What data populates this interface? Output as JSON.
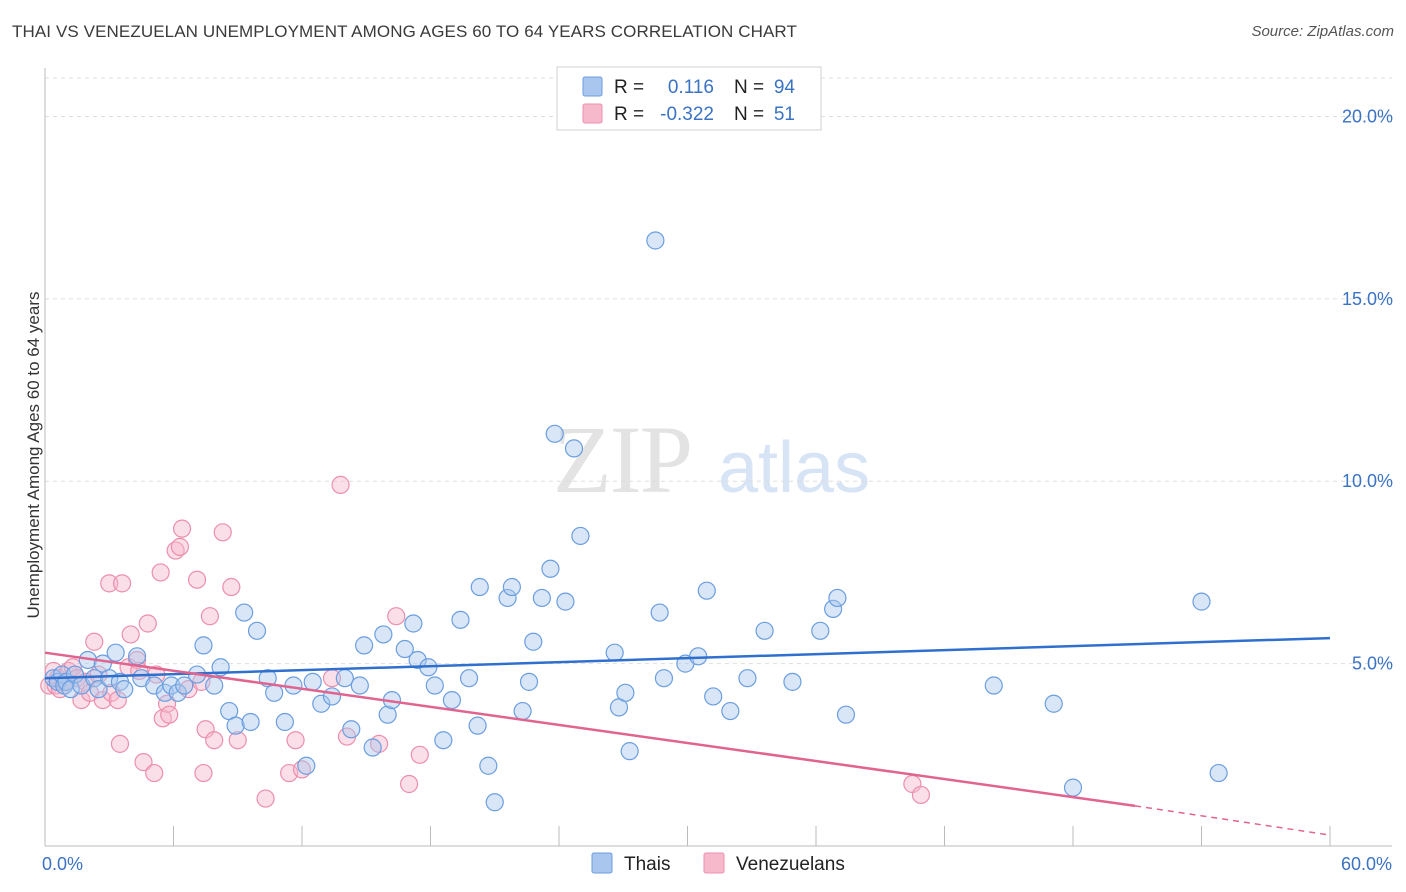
{
  "header": {
    "title": "THAI VS VENEZUELAN UNEMPLOYMENT AMONG AGES 60 TO 64 YEARS CORRELATION CHART",
    "source": "Source: ZipAtlas.com"
  },
  "watermark": {
    "zip": "ZIP",
    "atlas": "atlas"
  },
  "legend": {
    "rows": [
      {
        "r_label": "R =",
        "r_value": "0.116",
        "n_label": "N =",
        "n_value": "94"
      },
      {
        "r_label": "R =",
        "r_value": "-0.322",
        "n_label": "N =",
        "n_value": "51"
      }
    ]
  },
  "bottom_legend": {
    "thais": "Thais",
    "venezuelans": "Venezuelans"
  },
  "colors": {
    "thais_fill": "#a9c7ee",
    "thais_stroke": "#6b9ee0",
    "thais_line": "#2f6fce",
    "ven_fill": "#f6b8cb",
    "ven_stroke": "#ec8fac",
    "ven_line": "#e0648f",
    "tick": "#3a72c4",
    "grid": "#dddddd"
  },
  "chart_data": {
    "type": "scatter",
    "title": "THAI VS VENEZUELAN UNEMPLOYMENT AMONG AGES 60 TO 64 YEARS CORRELATION CHART",
    "xlabel": "",
    "ylabel": "Unemployment Among Ages 60 to 64 years",
    "xlim": [
      0,
      60
    ],
    "ylim": [
      0,
      21
    ],
    "x_tick_labels": [
      "0.0%",
      "60.0%"
    ],
    "y_ticks": [
      5,
      10,
      15,
      20
    ],
    "y_tick_labels": [
      "5.0%",
      "10.0%",
      "15.0%",
      "20.0%"
    ],
    "grid": true,
    "legend_position": "top-center",
    "series": [
      {
        "name": "Thais",
        "R": 0.116,
        "N": 94,
        "trend": {
          "x": [
            0,
            60
          ],
          "y": [
            4.6,
            5.7
          ]
        },
        "points": [
          [
            0.4,
            4.6
          ],
          [
            0.6,
            4.5
          ],
          [
            0.8,
            4.7
          ],
          [
            0.9,
            4.4
          ],
          [
            1.0,
            4.5
          ],
          [
            1.2,
            4.3
          ],
          [
            1.4,
            4.7
          ],
          [
            1.7,
            4.4
          ],
          [
            2.0,
            5.1
          ],
          [
            2.3,
            4.6
          ],
          [
            2.5,
            4.3
          ],
          [
            2.7,
            5.0
          ],
          [
            3.0,
            4.6
          ],
          [
            3.3,
            5.3
          ],
          [
            3.5,
            4.5
          ],
          [
            3.7,
            4.3
          ],
          [
            4.3,
            5.2
          ],
          [
            4.5,
            4.6
          ],
          [
            5.1,
            4.4
          ],
          [
            5.6,
            4.2
          ],
          [
            5.9,
            4.4
          ],
          [
            6.2,
            4.2
          ],
          [
            6.5,
            4.4
          ],
          [
            7.1,
            4.7
          ],
          [
            7.4,
            5.5
          ],
          [
            7.9,
            4.4
          ],
          [
            8.2,
            4.9
          ],
          [
            8.6,
            3.7
          ],
          [
            8.9,
            3.3
          ],
          [
            9.3,
            6.4
          ],
          [
            9.6,
            3.4
          ],
          [
            9.9,
            5.9
          ],
          [
            10.4,
            4.6
          ],
          [
            10.7,
            4.2
          ],
          [
            11.2,
            3.4
          ],
          [
            11.6,
            4.4
          ],
          [
            12.2,
            2.2
          ],
          [
            12.5,
            4.5
          ],
          [
            12.9,
            3.9
          ],
          [
            13.4,
            4.1
          ],
          [
            14.0,
            4.6
          ],
          [
            14.3,
            3.2
          ],
          [
            14.7,
            4.4
          ],
          [
            14.9,
            5.5
          ],
          [
            15.3,
            2.7
          ],
          [
            15.8,
            5.8
          ],
          [
            16.0,
            3.6
          ],
          [
            16.2,
            4.0
          ],
          [
            16.8,
            5.4
          ],
          [
            17.2,
            6.1
          ],
          [
            17.4,
            5.1
          ],
          [
            17.9,
            4.9
          ],
          [
            18.2,
            4.4
          ],
          [
            18.6,
            2.9
          ],
          [
            19.0,
            4.0
          ],
          [
            19.4,
            6.2
          ],
          [
            19.8,
            4.6
          ],
          [
            20.2,
            3.3
          ],
          [
            20.3,
            7.1
          ],
          [
            20.7,
            2.2
          ],
          [
            21.0,
            1.2
          ],
          [
            21.6,
            6.8
          ],
          [
            21.8,
            7.1
          ],
          [
            22.3,
            3.7
          ],
          [
            22.6,
            4.5
          ],
          [
            22.8,
            5.6
          ],
          [
            23.2,
            6.8
          ],
          [
            23.6,
            7.6
          ],
          [
            23.8,
            11.3
          ],
          [
            24.3,
            6.7
          ],
          [
            24.7,
            10.9
          ],
          [
            25.0,
            8.5
          ],
          [
            26.6,
            5.3
          ],
          [
            26.8,
            3.8
          ],
          [
            27.1,
            4.2
          ],
          [
            27.3,
            2.6
          ],
          [
            28.5,
            16.6
          ],
          [
            28.7,
            6.4
          ],
          [
            28.9,
            4.6
          ],
          [
            29.9,
            5.0
          ],
          [
            30.5,
            5.2
          ],
          [
            30.9,
            7.0
          ],
          [
            31.2,
            4.1
          ],
          [
            32.0,
            3.7
          ],
          [
            32.8,
            4.6
          ],
          [
            33.6,
            5.9
          ],
          [
            34.9,
            4.5
          ],
          [
            36.2,
            5.9
          ],
          [
            36.8,
            6.5
          ],
          [
            37.0,
            6.8
          ],
          [
            37.4,
            3.6
          ],
          [
            44.3,
            4.4
          ],
          [
            47.1,
            3.9
          ],
          [
            48.0,
            1.6
          ],
          [
            54.0,
            6.7
          ],
          [
            54.8,
            2.0
          ]
        ]
      },
      {
        "name": "Venezuelans",
        "R": -0.322,
        "N": 51,
        "trend": {
          "x": [
            0,
            50.9
          ],
          "y": [
            5.3,
            1.1
          ]
        },
        "trend_dashed": {
          "x": [
            50.9,
            60
          ],
          "y": [
            1.1,
            0.3
          ]
        },
        "points": [
          [
            0.2,
            4.4
          ],
          [
            0.4,
            4.8
          ],
          [
            0.5,
            4.4
          ],
          [
            0.6,
            4.6
          ],
          [
            0.7,
            4.3
          ],
          [
            0.9,
            4.5
          ],
          [
            1.1,
            4.8
          ],
          [
            1.3,
            4.9
          ],
          [
            1.5,
            4.6
          ],
          [
            1.7,
            4.0
          ],
          [
            1.9,
            4.5
          ],
          [
            2.1,
            4.2
          ],
          [
            2.3,
            5.6
          ],
          [
            2.5,
            4.7
          ],
          [
            2.7,
            4.0
          ],
          [
            3.0,
            7.2
          ],
          [
            3.1,
            4.2
          ],
          [
            3.4,
            4.0
          ],
          [
            3.5,
            2.8
          ],
          [
            3.6,
            7.2
          ],
          [
            3.9,
            4.9
          ],
          [
            4.0,
            5.8
          ],
          [
            4.3,
            5.1
          ],
          [
            4.4,
            4.8
          ],
          [
            4.6,
            2.3
          ],
          [
            4.8,
            6.1
          ],
          [
            5.1,
            2.0
          ],
          [
            5.2,
            4.7
          ],
          [
            5.4,
            7.5
          ],
          [
            5.5,
            3.5
          ],
          [
            5.7,
            3.9
          ],
          [
            5.8,
            3.6
          ],
          [
            6.1,
            8.1
          ],
          [
            6.3,
            8.2
          ],
          [
            6.4,
            8.7
          ],
          [
            6.7,
            4.3
          ],
          [
            7.1,
            7.3
          ],
          [
            7.3,
            4.5
          ],
          [
            7.4,
            2.0
          ],
          [
            7.5,
            3.2
          ],
          [
            7.7,
            6.3
          ],
          [
            7.9,
            2.9
          ],
          [
            8.3,
            8.6
          ],
          [
            8.7,
            7.1
          ],
          [
            9.0,
            2.9
          ],
          [
            10.3,
            1.3
          ],
          [
            11.4,
            2.0
          ],
          [
            11.7,
            2.9
          ],
          [
            12.0,
            2.1
          ],
          [
            13.4,
            4.6
          ],
          [
            13.8,
            9.9
          ],
          [
            14.1,
            3.0
          ],
          [
            15.6,
            2.8
          ],
          [
            16.4,
            6.3
          ],
          [
            17.0,
            1.7
          ],
          [
            17.5,
            2.5
          ],
          [
            40.5,
            1.7
          ],
          [
            40.9,
            1.4
          ]
        ]
      }
    ]
  }
}
